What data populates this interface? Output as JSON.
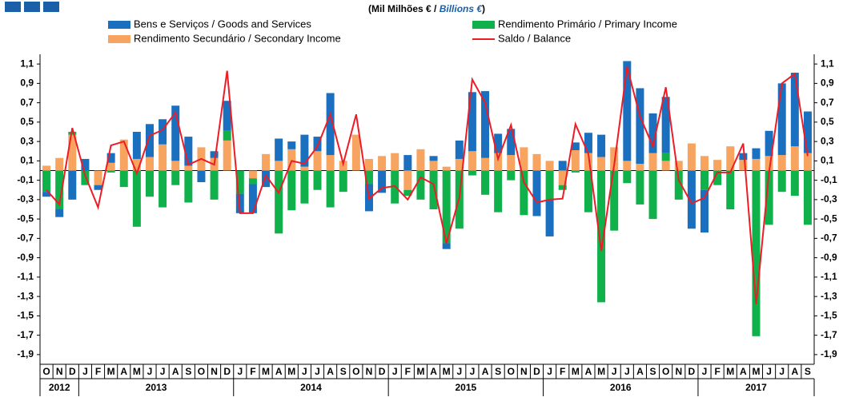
{
  "chart_data": {
    "type": "bar",
    "title_parts": [
      "(Mil Milhões € / ",
      "Billions  €",
      ")"
    ],
    "categories": [
      "O",
      "N",
      "D",
      "J",
      "F",
      "M",
      "A",
      "M",
      "J",
      "J",
      "A",
      "S",
      "O",
      "N",
      "D",
      "J",
      "F",
      "M",
      "A",
      "M",
      "J",
      "J",
      "A",
      "S",
      "O",
      "N",
      "D",
      "J",
      "F",
      "M",
      "A",
      "M",
      "J",
      "J",
      "A",
      "S",
      "O",
      "N",
      "D",
      "J",
      "F",
      "M",
      "A",
      "M",
      "J",
      "J",
      "A",
      "S",
      "O",
      "N",
      "D",
      "J",
      "F",
      "M",
      "A",
      "M",
      "J",
      "J",
      "A",
      "S"
    ],
    "years": [
      "2012",
      "2013",
      "2014",
      "2015",
      "2016",
      "2017"
    ],
    "series": [
      {
        "name": "Bens e Serviços / Goods and Services",
        "color": "#1a6fbf",
        "values": [
          -0.05,
          -0.08,
          -0.3,
          0.12,
          -0.05,
          0.1,
          0,
          0.28,
          0.34,
          0.26,
          0.57,
          0.3,
          -0.12,
          0.07,
          0.31,
          -0.2,
          -0.3,
          -0.17,
          0.23,
          0.08,
          0.33,
          0.15,
          0.64,
          0,
          0,
          -0.28,
          -0.23,
          0,
          0.16,
          0,
          0.05,
          -0.06,
          0.19,
          0.61,
          0.69,
          0.2,
          0.27,
          0,
          -0.47,
          -0.38,
          0.1,
          0.08,
          0.21,
          0.23,
          0,
          1.03,
          0.78,
          0.41,
          0.58,
          0,
          -0.6,
          -0.44,
          0,
          0,
          0.07,
          0.11,
          0.26,
          0.74,
          0.76,
          0.43
        ]
      },
      {
        "name": "Rendimento Primário / Primary Income",
        "color": "#10b04a",
        "values": [
          -0.22,
          -0.4,
          0.03,
          -0.15,
          0,
          -0.02,
          -0.17,
          -0.58,
          -0.27,
          -0.38,
          -0.15,
          -0.33,
          0,
          -0.3,
          0.1,
          -0.24,
          -0.06,
          0,
          -0.65,
          -0.41,
          -0.34,
          -0.2,
          -0.38,
          -0.22,
          0,
          -0.14,
          0,
          -0.34,
          -0.06,
          -0.3,
          -0.4,
          -0.75,
          -0.6,
          -0.05,
          -0.25,
          -0.43,
          -0.1,
          -0.46,
          0,
          -0.3,
          -0.05,
          -0.02,
          -0.43,
          -1.36,
          -0.62,
          -0.13,
          -0.35,
          -0.5,
          0.08,
          -0.3,
          0,
          -0.2,
          -0.15,
          -0.4,
          0,
          -1.71,
          -0.56,
          -0.22,
          -0.26,
          -0.56
        ]
      },
      {
        "name": "Rendimento Secundário / Secondary Income",
        "color": "#f6a45f",
        "values": [
          0.05,
          0.13,
          0.37,
          0,
          -0.15,
          0.08,
          0.32,
          0.12,
          0.14,
          0.27,
          0.1,
          0.05,
          0.24,
          0.13,
          0.31,
          0,
          -0.08,
          0.17,
          0.1,
          0.22,
          0.04,
          0.2,
          0.16,
          0.1,
          0.37,
          0.12,
          0.15,
          0.18,
          -0.2,
          0.22,
          0.1,
          0.04,
          0.12,
          0.2,
          0.13,
          0.18,
          0.16,
          0.24,
          0.17,
          0.1,
          -0.15,
          0.21,
          0.18,
          0.14,
          0.24,
          0.1,
          0.07,
          0.18,
          0.1,
          0.1,
          0.28,
          0.15,
          0.11,
          0.25,
          0.11,
          0.12,
          0.15,
          0.16,
          0.25,
          0.18
        ]
      },
      {
        "name": "Saldo / Balance",
        "color": "#ee1c25",
        "type": "line",
        "values": [
          -0.2,
          -0.35,
          0.44,
          -0.05,
          -0.38,
          0.26,
          0.3,
          -0.03,
          0.36,
          0.42,
          0.6,
          0.06,
          0.12,
          0.06,
          1.03,
          -0.44,
          -0.44,
          -0.05,
          -0.23,
          0.1,
          0.07,
          0.25,
          0.58,
          0.07,
          0.58,
          -0.29,
          -0.18,
          -0.16,
          -0.3,
          -0.07,
          -0.14,
          -0.75,
          -0.28,
          0.94,
          0.7,
          0.12,
          0.47,
          -0.12,
          -0.33,
          -0.3,
          -0.29,
          0.48,
          0.17,
          -0.83,
          0.06,
          1.07,
          0.56,
          0.25,
          0.86,
          -0.1,
          -0.34,
          -0.28,
          -0.02,
          -0.02,
          0.28,
          -1.38,
          -0.02,
          0.9,
          1.0,
          0.15
        ]
      }
    ],
    "ylim": [
      -2.0,
      1.2
    ],
    "yticks": [
      {
        "value": 1.1,
        "label": "1,1"
      },
      {
        "value": 0.9,
        "label": "0,9"
      },
      {
        "value": 0.7,
        "label": "0,7"
      },
      {
        "value": 0.5,
        "label": "0,5"
      },
      {
        "value": 0.3,
        "label": "0,3"
      },
      {
        "value": 0.1,
        "label": "0,1"
      },
      {
        "value": -0.1,
        "label": "-0,1"
      },
      {
        "value": -0.3,
        "label": "-0,3"
      },
      {
        "value": -0.5,
        "label": "-0,5"
      },
      {
        "value": -0.7,
        "label": "-0,7"
      },
      {
        "value": -0.9,
        "label": "-0,9"
      },
      {
        "value": -1.1,
        "label": "-1,1"
      },
      {
        "value": -1.3,
        "label": "-1,3"
      },
      {
        "value": -1.5,
        "label": "-1,5"
      },
      {
        "value": -1.7,
        "label": "-1,7"
      },
      {
        "value": -1.9,
        "label": "-1,9"
      }
    ]
  }
}
